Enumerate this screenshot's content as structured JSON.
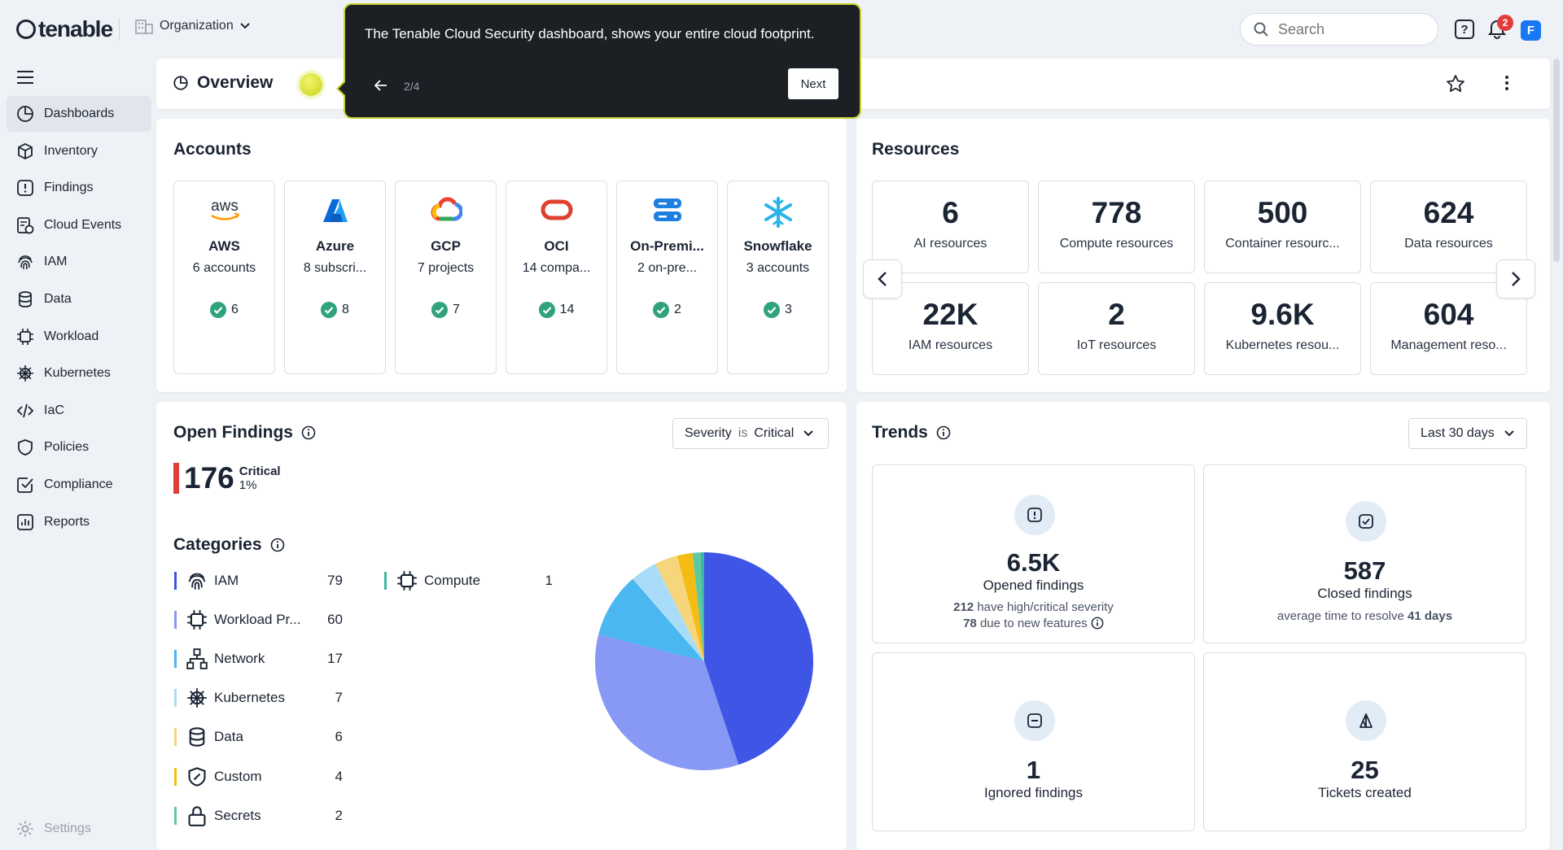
{
  "brand": {
    "logo": "tenable",
    "org": "Organization"
  },
  "search": {
    "placeholder": "Search"
  },
  "header": {
    "help": "?",
    "notif_count": "2",
    "avatar_initial": "F"
  },
  "sidebar": {
    "items": [
      {
        "label": "Dashboards",
        "icon": "dashboard-icon",
        "active": true
      },
      {
        "label": "Inventory",
        "icon": "cube-icon"
      },
      {
        "label": "Findings",
        "icon": "alert-icon"
      },
      {
        "label": "Cloud Events",
        "icon": "cloud-events-icon"
      },
      {
        "label": "IAM",
        "icon": "fingerprint-icon"
      },
      {
        "label": "Data",
        "icon": "database-icon"
      },
      {
        "label": "Workload",
        "icon": "chip-icon"
      },
      {
        "label": "Kubernetes",
        "icon": "helm-icon"
      },
      {
        "label": "IaC",
        "icon": "code-icon"
      },
      {
        "label": "Policies",
        "icon": "shield-icon"
      },
      {
        "label": "Compliance",
        "icon": "check-square-icon"
      },
      {
        "label": "Reports",
        "icon": "report-icon"
      }
    ],
    "settings": "Settings"
  },
  "overview": {
    "title": "Overview"
  },
  "tour": {
    "message": "The Tenable Cloud Security dashboard, shows your entire cloud footprint.",
    "step": "2/4",
    "next": "Next"
  },
  "accounts": {
    "title": "Accounts",
    "items": [
      {
        "name": "AWS",
        "sub": "6 accounts",
        "ok": "6"
      },
      {
        "name": "Azure",
        "sub": "8 subscri...",
        "ok": "8"
      },
      {
        "name": "GCP",
        "sub": "7 projects",
        "ok": "7"
      },
      {
        "name": "OCI",
        "sub": "14 compa...",
        "ok": "14"
      },
      {
        "name": "On-Premi...",
        "sub": "2 on-pre...",
        "ok": "2"
      },
      {
        "name": "Snowflake",
        "sub": "3 accounts",
        "ok": "3"
      }
    ]
  },
  "resources": {
    "title": "Resources",
    "items": [
      {
        "value": "6",
        "label": "AI resources"
      },
      {
        "value": "778",
        "label": "Compute resources"
      },
      {
        "value": "500",
        "label": "Container resourc..."
      },
      {
        "value": "624",
        "label": "Data resources"
      },
      {
        "value": "22K",
        "label": "IAM resources"
      },
      {
        "value": "2",
        "label": "IoT resources"
      },
      {
        "value": "9.6K",
        "label": "Kubernetes resou..."
      },
      {
        "value": "604",
        "label": "Management reso..."
      }
    ]
  },
  "findings": {
    "title": "Open Findings",
    "filter_field": "Severity",
    "filter_op": "is",
    "filter_value": "Critical",
    "critical_count": "176",
    "critical_label": "Critical",
    "critical_pct": "1%"
  },
  "categories": {
    "title": "Categories",
    "items": [
      {
        "label": "IAM",
        "count": "79",
        "color": "#3f55e6",
        "icon": "fingerprint-icon"
      },
      {
        "label": "Workload Pr...",
        "count": "60",
        "color": "#8899f5",
        "icon": "chip-icon"
      },
      {
        "label": "Network",
        "count": "17",
        "color": "#4ab7f0",
        "icon": "network-icon"
      },
      {
        "label": "Kubernetes",
        "count": "7",
        "color": "#a9dcf8",
        "icon": "helm-icon"
      },
      {
        "label": "Data",
        "count": "6",
        "color": "#f6d57b",
        "icon": "database-icon"
      },
      {
        "label": "Custom",
        "count": "4",
        "color": "#f5bc14",
        "icon": "custom-icon"
      },
      {
        "label": "Secrets",
        "count": "2",
        "color": "#5cc9a0",
        "icon": "lock-icon"
      },
      {
        "label": "Compute",
        "count": "1",
        "color": "#3fb6a2",
        "icon": "chip-icon"
      }
    ]
  },
  "trends": {
    "title": "Trends",
    "range": "Last 30 days",
    "opened": {
      "value": "6.5K",
      "label": "Opened findings",
      "high_count": "212",
      "high_text": "have high/critical severity",
      "new_count": "78",
      "new_text": "due to new features"
    },
    "closed": {
      "value": "587",
      "label": "Closed findings",
      "avg_text": "average time to resolve",
      "avg_days": "41 days"
    },
    "ignored": {
      "value": "1",
      "label": "Ignored findings"
    },
    "tickets": {
      "value": "25",
      "label": "Tickets created"
    }
  }
}
